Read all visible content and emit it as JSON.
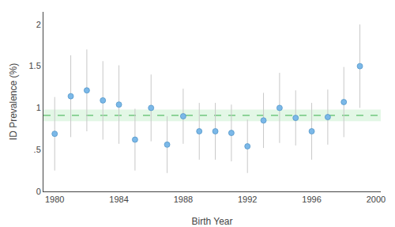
{
  "chart_data": {
    "type": "scatter",
    "x_label": "Birth Year",
    "y_label": "ID Prevalence (%)",
    "x": [
      1980,
      1981,
      1982,
      1983,
      1984,
      1985,
      1986,
      1987,
      1988,
      1989,
      1990,
      1991,
      1992,
      1993,
      1994,
      1995,
      1996,
      1997,
      1998,
      1999
    ],
    "values": [
      0.69,
      1.14,
      1.21,
      1.09,
      1.04,
      0.62,
      1.0,
      0.56,
      0.9,
      0.72,
      0.72,
      0.7,
      0.54,
      0.85,
      1.0,
      0.88,
      0.72,
      0.89,
      1.07,
      1.5
    ],
    "ci_lower": [
      0.25,
      0.65,
      0.72,
      0.62,
      0.57,
      0.25,
      0.6,
      0.22,
      0.57,
      0.38,
      0.38,
      0.36,
      0.22,
      0.52,
      0.58,
      0.55,
      0.38,
      0.56,
      0.65,
      1.0
    ],
    "ci_upper": [
      1.13,
      1.63,
      1.7,
      1.56,
      1.51,
      0.99,
      1.4,
      0.9,
      1.23,
      1.06,
      1.06,
      1.04,
      0.86,
      1.18,
      1.42,
      1.21,
      1.06,
      1.22,
      1.49,
      2.0
    ],
    "color": "#7BB8E8",
    "mean_line": {
      "value": 0.91,
      "color": "#5BBF6A",
      "line_style": "dashed"
    },
    "ci_band": {
      "lower": 0.84,
      "upper": 0.98,
      "color": "#B8EBC0"
    },
    "xlim": [
      1979.3,
      2000.3
    ],
    "xticks": [
      1980,
      1984,
      1988,
      1992,
      1996,
      2000
    ],
    "ylim": [
      0,
      2.15
    ],
    "yticks": [
      0,
      {
        "value": 0.5,
        "label": ".5"
      },
      1,
      1.5,
      2
    ],
    "grid": false
  }
}
